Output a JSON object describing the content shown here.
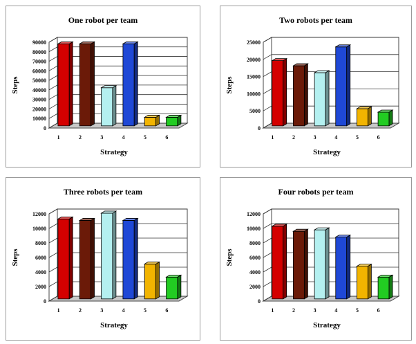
{
  "chart_data": [
    {
      "type": "bar",
      "title": "One robot per team",
      "xlabel": "Strategy",
      "ylabel": "Steps",
      "categories": [
        "1",
        "2",
        "3",
        "4",
        "5",
        "6"
      ],
      "values": [
        86000,
        86000,
        40000,
        86000,
        9000,
        9000
      ],
      "ylim": [
        0,
        90000
      ],
      "yticks": [
        "0",
        "10000",
        "20000",
        "30000",
        "40000",
        "50000",
        "60000",
        "70000",
        "80000",
        "90000"
      ],
      "grid": true
    },
    {
      "type": "bar",
      "title": "Two robots per team",
      "xlabel": "Strategy",
      "ylabel": "Steps",
      "categories": [
        "1",
        "2",
        "3",
        "4",
        "5",
        "6"
      ],
      "values": [
        19000,
        17500,
        15500,
        23000,
        5000,
        4000
      ],
      "ylim": [
        0,
        25000
      ],
      "yticks": [
        "0",
        "5000",
        "10000",
        "15000",
        "20000",
        "25000"
      ],
      "grid": true
    },
    {
      "type": "bar",
      "title": "Three robots per team",
      "xlabel": "Strategy",
      "ylabel": "Steps",
      "categories": [
        "1",
        "2",
        "3",
        "4",
        "5",
        "6"
      ],
      "values": [
        11000,
        10800,
        11800,
        10800,
        4800,
        3000
      ],
      "ylim": [
        0,
        12000
      ],
      "yticks": [
        "0",
        "2000",
        "4000",
        "6000",
        "8000",
        "10000",
        "12000"
      ],
      "grid": true
    },
    {
      "type": "bar",
      "title": "Four robots per team",
      "xlabel": "Strategy",
      "ylabel": "Steps",
      "categories": [
        "1",
        "2",
        "3",
        "4",
        "5",
        "6"
      ],
      "values": [
        10000,
        9300,
        9500,
        8500,
        4500,
        3000
      ],
      "ylim": [
        0,
        12000
      ],
      "yticks": [
        "0",
        "2000",
        "4000",
        "6000",
        "8000",
        "10000",
        "12000"
      ],
      "grid": true
    }
  ],
  "colors": [
    "#d40000",
    "#6b1a08",
    "#b4f0f0",
    "#1f48d6",
    "#f2b400",
    "#22cc22"
  ]
}
